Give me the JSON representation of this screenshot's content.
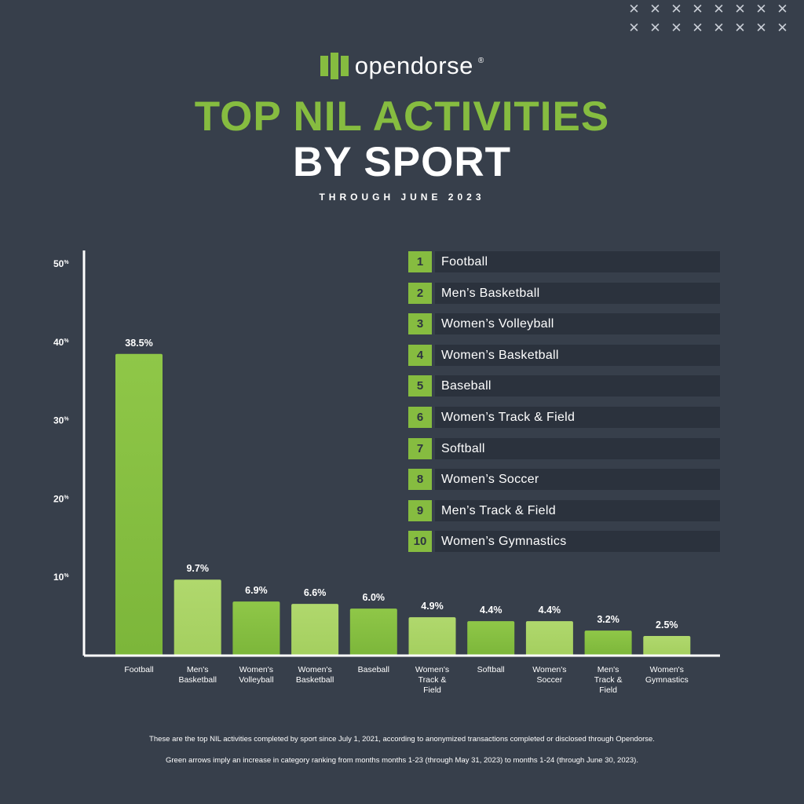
{
  "brand": {
    "name": "opendorse",
    "reg": "®"
  },
  "title": {
    "line1": "TOP NIL ACTIVITIES",
    "line2": "BY SPORT"
  },
  "subtitle": "THROUGH JUNE 2023",
  "colors": {
    "background": "#373f4b",
    "accent_green": "#86bc40",
    "bar_dark": "#7cb63a",
    "bar_light": "#a4cf5f"
  },
  "chart_data": {
    "type": "bar",
    "categories": [
      [
        "Football"
      ],
      [
        "Men's",
        "Basketball"
      ],
      [
        "Women's",
        "Volleyball"
      ],
      [
        "Women's",
        "Basketball"
      ],
      [
        "Baseball"
      ],
      [
        "Women's",
        "Track &",
        "Field"
      ],
      [
        "Softball"
      ],
      [
        "Women's",
        "Soccer"
      ],
      [
        "Men's",
        "Track &",
        "Field"
      ],
      [
        "Women's",
        "Gymnastics"
      ]
    ],
    "values": [
      38.5,
      9.7,
      6.9,
      6.6,
      6.0,
      4.9,
      4.4,
      4.4,
      3.2,
      2.5
    ],
    "data_labels": [
      "38.5%",
      "9.7%",
      "6.9%",
      "6.6%",
      "6.0%",
      "4.9%",
      "4.4%",
      "4.4%",
      "3.2%",
      "2.5%"
    ],
    "ylim": [
      0,
      50
    ],
    "yticks": [
      10,
      20,
      30,
      40,
      50
    ],
    "ytick_suffix": "%",
    "grid": false
  },
  "legend": {
    "items": [
      {
        "rank": "1",
        "label": "Football"
      },
      {
        "rank": "2",
        "label": "Men’s Basketball"
      },
      {
        "rank": "3",
        "label": "Women’s Volleyball"
      },
      {
        "rank": "4",
        "label": "Women’s Basketball"
      },
      {
        "rank": "5",
        "label": "Baseball"
      },
      {
        "rank": "6",
        "label": "Women’s Track & Field"
      },
      {
        "rank": "7",
        "label": "Softball"
      },
      {
        "rank": "8",
        "label": "Women’s Soccer"
      },
      {
        "rank": "9",
        "label": "Men’s Track & Field"
      },
      {
        "rank": "10",
        "label": "Women’s Gymnastics"
      }
    ]
  },
  "footnotes": [
    "These are the top NIL activities completed by sport since July 1, 2021, according to anonymized transactions completed or disclosed through Opendorse.",
    "Green arrows imply an increase in category ranking from months months 1-23 (through May 31, 2023) to months 1-24 (through June 30, 2023)."
  ]
}
